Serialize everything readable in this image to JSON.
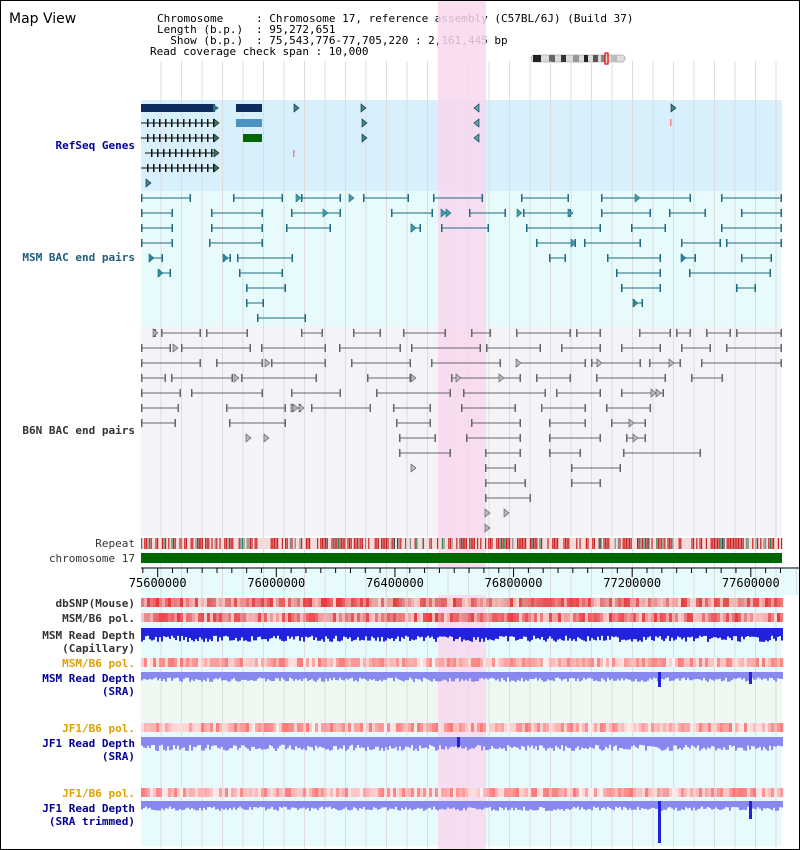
{
  "view": {
    "title": "Map View"
  },
  "info": {
    "chromosome_key": "Chromosome",
    "chromosome_val": ": Chromosome 17, reference assembly (C57BL/6J) (Build 37)",
    "length_key": "Length (b.p.)",
    "length_val": ": 95,272,651",
    "show_key": "  Show (b.p.)",
    "show_val": ": 75,543,776-77,705,220 : 2,161,445 bp",
    "coverage_line": "Read coverage check span : 10,000"
  },
  "tracks": {
    "refseq": "RefSeq Genes",
    "msm_bac": "MSM BAC end pairs",
    "b6n_bac": "B6N BAC end pairs",
    "repeat": "Repeat",
    "chromosome": "chromosome 17",
    "dbsnp": "dbSNP(Mouse)",
    "msm_b6_pol_1": "MSM/B6 pol.",
    "msm_read_depth_cap_1": "MSM Read Depth",
    "msm_read_depth_cap_2": "(Capillary)",
    "msm_b6_pol_2": "MSM/B6 pol.",
    "msm_read_depth_sra_1": "MSM Read Depth",
    "msm_read_depth_sra_2": "(SRA)",
    "jf1_b6_pol_1": "JF1/B6 pol.",
    "jf1_read_depth_sra_1": "JF1 Read Depth",
    "jf1_read_depth_sra_2": "(SRA)",
    "jf1_b6_pol_2": "JF1/B6 pol.",
    "jf1_read_depth_trim_1": "JF1 Read Depth",
    "jf1_read_depth_trim_2": "(SRA trimmed)"
  },
  "axis": {
    "ticks": [
      "75600000",
      "76000000",
      "76400000",
      "76800000",
      "77200000",
      "77600000"
    ],
    "range": [
      75543776,
      77705220
    ]
  },
  "highlight": {
    "start": 76545000,
    "end": 76707000
  },
  "colors": {
    "refseq_bg": "#d8f0fb",
    "msm_bg": "#e8fbfc",
    "b6n_bg": "#f4f4f8",
    "highlight": "#f8d8f0",
    "teal": "#1e6a82",
    "navy": "#0e2d5c",
    "green": "#006600",
    "repeat_red": "#cc2222",
    "depth_blue": "#2222dd",
    "depth_light": "#8888ee"
  }
}
